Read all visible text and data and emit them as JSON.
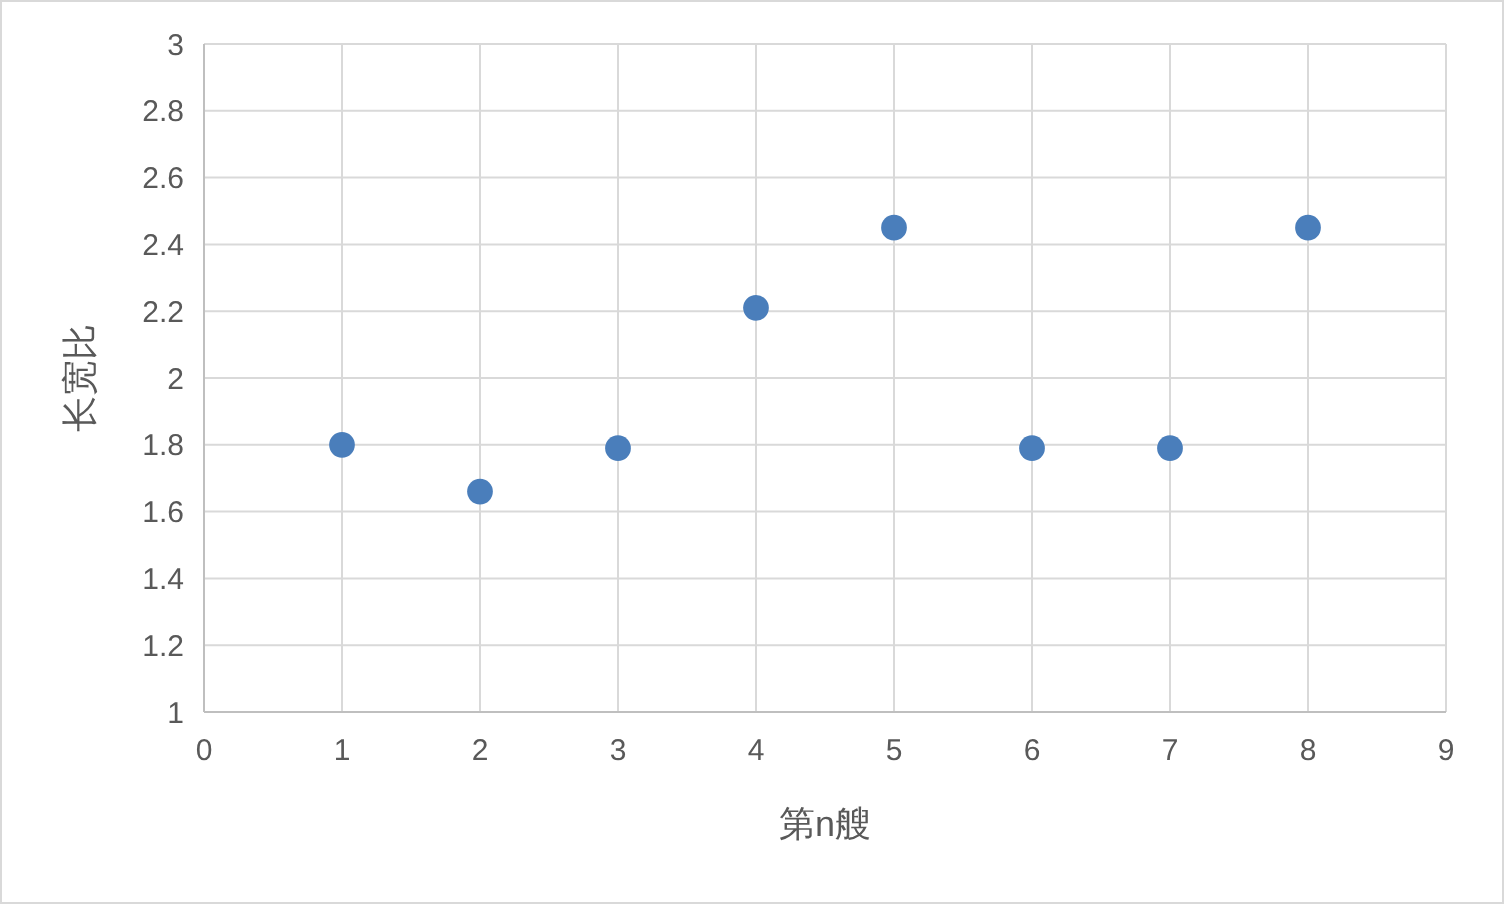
{
  "chart_data": {
    "type": "scatter",
    "xlabel": "第n艘",
    "ylabel": "长宽比",
    "x": [
      1,
      2,
      3,
      4,
      5,
      6,
      7,
      8
    ],
    "values": [
      1.8,
      1.66,
      1.79,
      2.21,
      2.45,
      1.79,
      1.79,
      2.45
    ],
    "color": "#4a7ebb",
    "xlim": [
      0,
      9
    ],
    "xticks": [
      0,
      1,
      2,
      3,
      4,
      5,
      6,
      7,
      8,
      9
    ],
    "ylim": [
      1,
      3
    ],
    "yticks": [
      1,
      1.2,
      1.4,
      1.6,
      1.8,
      2,
      2.2,
      2.4,
      2.6,
      2.8,
      3
    ],
    "grid": true,
    "marker": "circle"
  }
}
